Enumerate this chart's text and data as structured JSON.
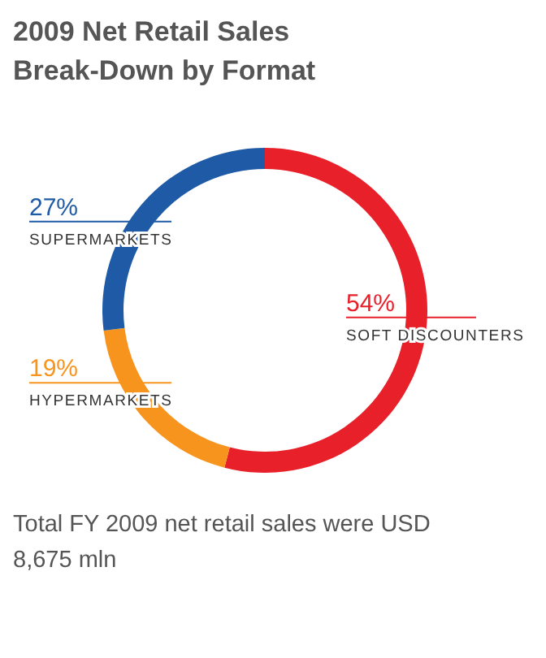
{
  "chart_data": {
    "type": "donut",
    "title": "2009 Net Retail Sales Break-Down by Format",
    "categories": [
      "SOFT DISCOUNTERS",
      "HYPERMARKETS",
      "SUPERMARKETS"
    ],
    "values": [
      54,
      19,
      27
    ],
    "value_labels": [
      "54%",
      "19%",
      "27%"
    ],
    "colors": [
      "#e8202a",
      "#f7941d",
      "#1f5aa6"
    ],
    "annotations": [
      "Total FY 2009 net retail sales were USD 8,675 mln"
    ]
  }
}
